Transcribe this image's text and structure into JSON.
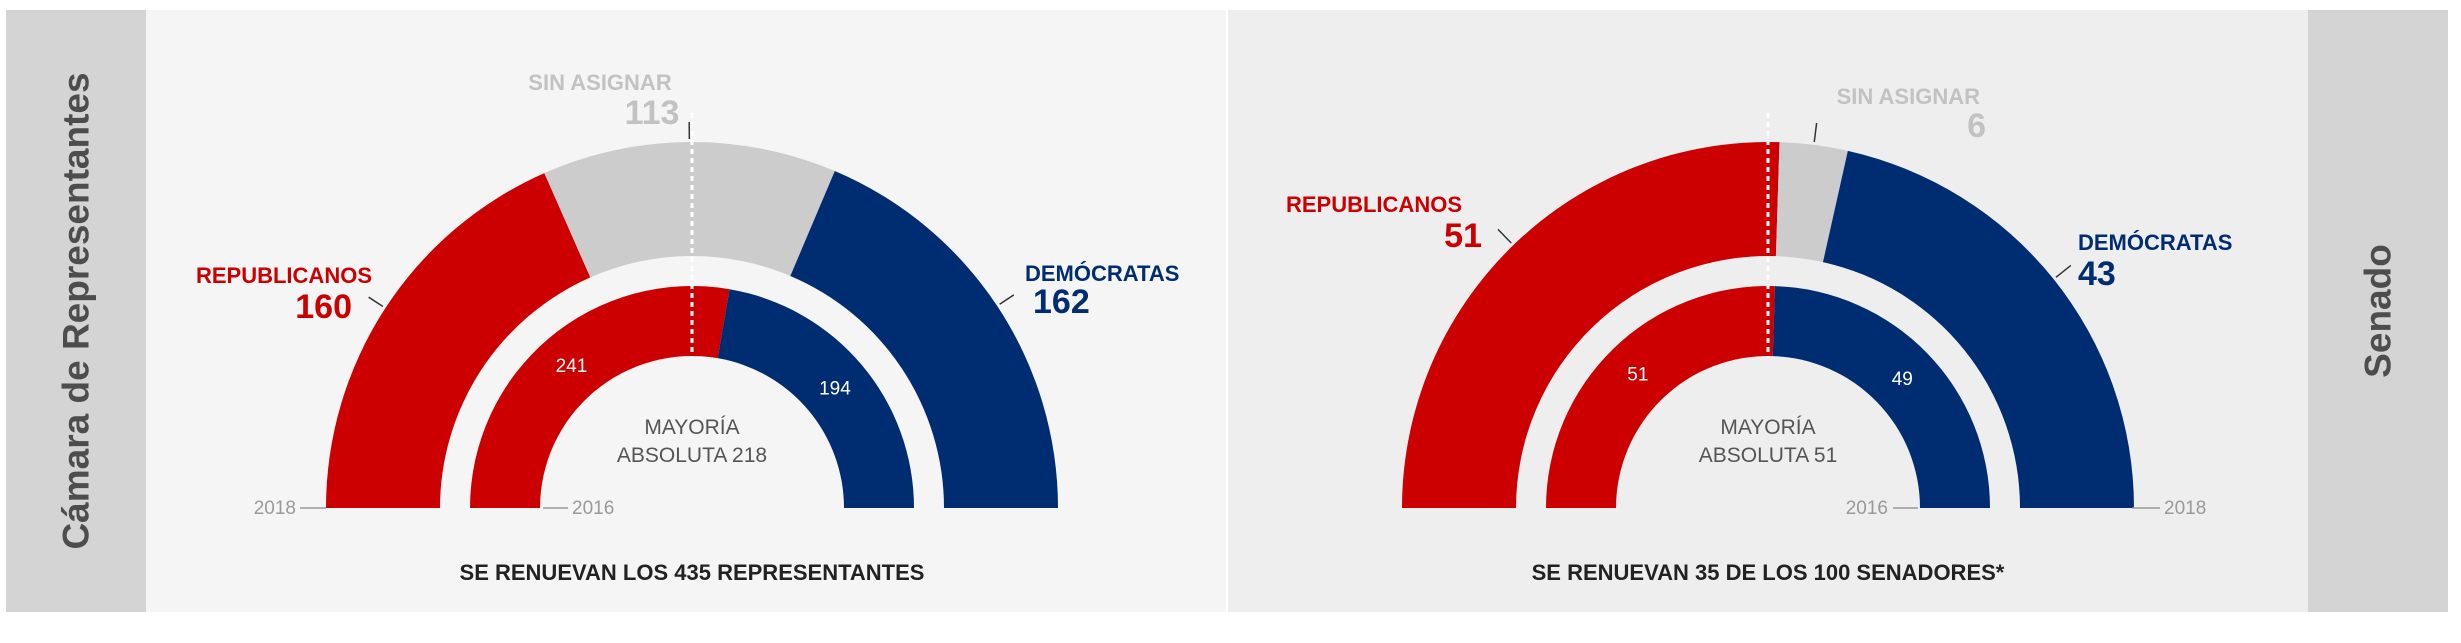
{
  "colors": {
    "republican": "#cc0000",
    "democrat": "#002d72",
    "unassigned": "#cccccc",
    "unassigned_text": "#c2c2c2",
    "sidebar_bg": "#d4d4d4",
    "sidebar_text": "#4d4d4d",
    "house_panel_bg": "#f5f5f5",
    "senate_panel_bg": "#eeeeee",
    "muted_text": "#999999",
    "body_text": "#222222"
  },
  "side_labels": {
    "house": "Cámara de Representantes",
    "senate": "Senado"
  },
  "chart_data": [
    {
      "type": "pie",
      "id": "house",
      "title": "SE RENUEVAN LOS 435 REPRESENTANTES",
      "center_label": [
        "MAYORÍA",
        "ABSOLUTA 218"
      ],
      "outer": {
        "year": "2018",
        "segments": [
          {
            "label": "REPUBLICANOS",
            "value": 160
          },
          {
            "label": "SIN ASIGNAR",
            "value": 113
          },
          {
            "label": "DEMÓCRATAS",
            "value": 162
          }
        ]
      },
      "inner": {
        "year": "2016",
        "segments": [
          {
            "label": "REPUBLICANOS",
            "value": 241
          },
          {
            "label": "DEMÓCRATAS",
            "value": 194
          }
        ]
      }
    },
    {
      "type": "pie",
      "id": "senate",
      "title": "SE RENUEVAN 35 DE LOS 100 SENADORES*",
      "center_label": [
        "MAYORÍA",
        "ABSOLUTA 51"
      ],
      "outer": {
        "year": "2018",
        "segments": [
          {
            "label": "REPUBLICANOS",
            "value": 51
          },
          {
            "label": "SIN ASIGNAR",
            "value": 6
          },
          {
            "label": "DEMÓCRATAS",
            "value": 43
          }
        ]
      },
      "inner": {
        "year": "2016",
        "segments": [
          {
            "label": "REPUBLICANOS",
            "value": 51
          },
          {
            "label": "DEMÓCRATAS",
            "value": 49
          }
        ]
      }
    }
  ]
}
